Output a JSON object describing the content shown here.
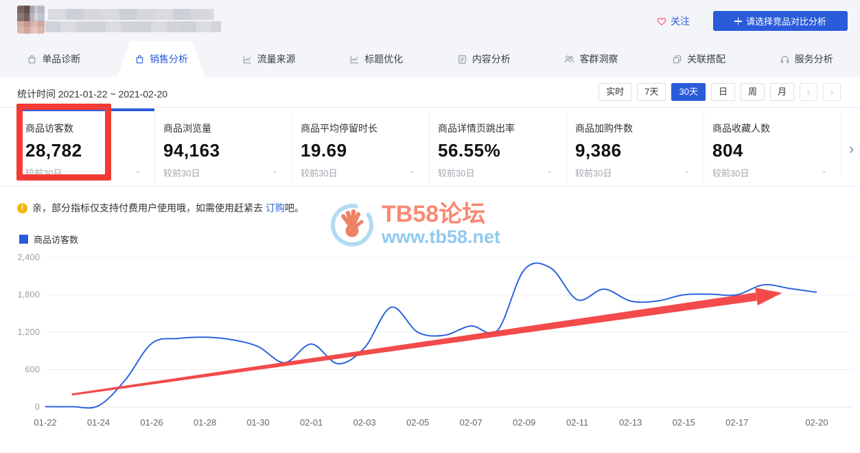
{
  "header": {
    "follow_label": "关注",
    "compare_button_label": "请选择竞品对比分析"
  },
  "tabs": [
    {
      "label": "单品诊断",
      "icon": "bag-icon",
      "active": false
    },
    {
      "label": "销售分析",
      "icon": "bag-icon",
      "active": true
    },
    {
      "label": "流量来源",
      "icon": "trend-icon",
      "active": false
    },
    {
      "label": "标题优化",
      "icon": "trend-icon",
      "active": false
    },
    {
      "label": "内容分析",
      "icon": "doc-icon",
      "active": false
    },
    {
      "label": "客群洞察",
      "icon": "users-icon",
      "active": false
    },
    {
      "label": "关联搭配",
      "icon": "copy-icon",
      "active": false
    },
    {
      "label": "服务分析",
      "icon": "headset-icon",
      "active": false
    }
  ],
  "toolbar": {
    "stat_time": "统计时间 2021-01-22 ~ 2021-02-20",
    "range_buttons": [
      "实时",
      "7天",
      "30天",
      "日",
      "周",
      "月"
    ],
    "active_range": "30天",
    "pager_prev": "‹",
    "pager_next": "›"
  },
  "metrics": [
    {
      "label": "商品访客数",
      "value": "28,782",
      "compare_label": "较前30日",
      "compare_value": "-"
    },
    {
      "label": "商品浏览量",
      "value": "94,163",
      "compare_label": "较前30日",
      "compare_value": "-"
    },
    {
      "label": "商品平均停留时长",
      "value": "19.69",
      "compare_label": "较前30日",
      "compare_value": "-"
    },
    {
      "label": "商品详情页跳出率",
      "value": "56.55%",
      "compare_label": "较前30日",
      "compare_value": "-"
    },
    {
      "label": "商品加购件数",
      "value": "9,386",
      "compare_label": "较前30日",
      "compare_value": "-"
    },
    {
      "label": "商品收藏人数",
      "value": "804",
      "compare_label": "较前30日",
      "compare_value": "-"
    }
  ],
  "icons": {
    "cards_next": "›"
  },
  "notice": {
    "text_before": "亲，部分指标仅支持付费用户使用哦，如需使用赶紧去 ",
    "link": "订购",
    "text_after": "吧。"
  },
  "legend": {
    "label": "商品访客数",
    "color": "#2a5cd9"
  },
  "watermark": {
    "title": "TB58论坛",
    "url": "www.tb58.net"
  },
  "chart_data": {
    "type": "line",
    "x": [
      "01-22",
      "01-23",
      "01-24",
      "01-25",
      "01-26",
      "01-27",
      "01-28",
      "01-29",
      "01-30",
      "01-31",
      "02-01",
      "02-02",
      "02-03",
      "02-04",
      "02-05",
      "02-06",
      "02-07",
      "02-08",
      "02-09",
      "02-10",
      "02-11",
      "02-12",
      "02-13",
      "02-14",
      "02-15",
      "02-16",
      "02-17",
      "02-18",
      "02-19",
      "02-20"
    ],
    "x_tick_labels": [
      "01-22",
      "01-24",
      "01-26",
      "01-28",
      "01-30",
      "02-01",
      "02-03",
      "02-05",
      "02-07",
      "02-09",
      "02-11",
      "02-13",
      "02-15",
      "02-17",
      "02-20"
    ],
    "series": [
      {
        "name": "商品访客数",
        "color": "#2d63de",
        "values": [
          5,
          5,
          20,
          430,
          1020,
          1100,
          1120,
          1080,
          970,
          710,
          1010,
          695,
          950,
          1600,
          1200,
          1150,
          1300,
          1230,
          2200,
          2230,
          1720,
          1890,
          1700,
          1700,
          1800,
          1810,
          1800,
          1960,
          1900,
          1840
        ]
      }
    ],
    "y_ticks": [
      0,
      600,
      1200,
      1800,
      2400
    ],
    "y_tick_labels": [
      "0",
      "600",
      "1,200",
      "1,800",
      "2,400"
    ],
    "ylim": [
      0,
      2400
    ],
    "grid": true,
    "legend_position": "top-left"
  },
  "annotations": {
    "highlight_box": {
      "target": "metric-card-0",
      "color": "#f23b35"
    },
    "arrow": {
      "from": {
        "day": 1.0,
        "value": 200
      },
      "to": {
        "day": 27.7,
        "value": 1830
      },
      "color": "#f23c3c"
    }
  }
}
